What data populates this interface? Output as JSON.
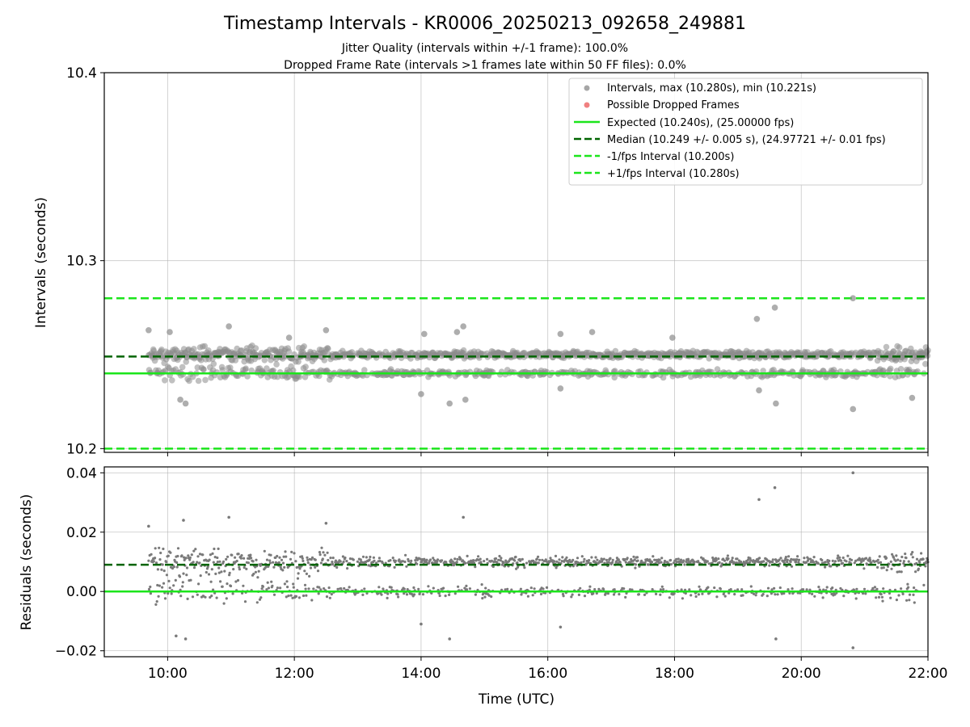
{
  "chart_data": [
    {
      "type": "scatter",
      "title": "Timestamp Intervals - KR0006_20250213_092658_249881",
      "subtitle_1": "Jitter Quality (intervals within +/-1 frame): 100.0%",
      "subtitle_2": "Dropped Frame Rate (intervals >1 frames late within 50 FF files): 0.0%",
      "ylabel": "Intervals (seconds)",
      "ylim": [
        10.198,
        10.4
      ],
      "yticks": [
        "10.2",
        "10.3",
        "10.4"
      ],
      "yticks_values": [
        10.2,
        10.3,
        10.4
      ],
      "grid": true,
      "legend_position": "top-right",
      "legend": [
        {
          "label": "Intervals, max (10.280s), min (10.221s)",
          "kind": "marker",
          "color": "#a6a6a6"
        },
        {
          "label": "Possible Dropped Frames",
          "kind": "marker",
          "color": "#f08080"
        },
        {
          "label": "Expected (10.240s), (25.00000 fps)",
          "kind": "solid",
          "color": "#1be51b"
        },
        {
          "label": "Median (10.249 +/- 0.005 s), (24.97721 +/- 0.01 fps)",
          "kind": "dashed",
          "color": "#006400"
        },
        {
          "label": "-1/fps Interval (10.200s)",
          "kind": "dashed",
          "color": "#1be51b"
        },
        {
          "label": "+1/fps Interval (10.280s)",
          "kind": "dashed",
          "color": "#1be51b"
        }
      ],
      "lines": {
        "expected": 10.24,
        "median": 10.249,
        "minus_fps": 10.2,
        "plus_fps": 10.28
      },
      "series": [
        {
          "name": "Intervals, max (10.280s), min (10.221s)",
          "x_range": [
            "09:42",
            "22:00"
          ],
          "level_upper": 10.25,
          "level_lower": 10.24,
          "outliers": [
            {
              "x": "09:42",
              "y": 10.263
            },
            {
              "x": "10:02",
              "y": 10.262
            },
            {
              "x": "10:12",
              "y": 10.226
            },
            {
              "x": "10:17",
              "y": 10.224
            },
            {
              "x": "10:58",
              "y": 10.265
            },
            {
              "x": "11:55",
              "y": 10.259
            },
            {
              "x": "12:30",
              "y": 10.263
            },
            {
              "x": "14:00",
              "y": 10.229
            },
            {
              "x": "14:03",
              "y": 10.261
            },
            {
              "x": "14:27",
              "y": 10.224
            },
            {
              "x": "14:34",
              "y": 10.262
            },
            {
              "x": "14:40",
              "y": 10.265
            },
            {
              "x": "14:42",
              "y": 10.226
            },
            {
              "x": "16:12",
              "y": 10.261
            },
            {
              "x": "16:12",
              "y": 10.232
            },
            {
              "x": "16:42",
              "y": 10.262
            },
            {
              "x": "17:58",
              "y": 10.259
            },
            {
              "x": "19:18",
              "y": 10.269
            },
            {
              "x": "19:20",
              "y": 10.231
            },
            {
              "x": "19:35",
              "y": 10.275
            },
            {
              "x": "19:36",
              "y": 10.224
            },
            {
              "x": "20:49",
              "y": 10.28
            },
            {
              "x": "20:49",
              "y": 10.221
            },
            {
              "x": "21:45",
              "y": 10.227
            }
          ]
        }
      ]
    },
    {
      "type": "scatter",
      "xlabel": "Time (UTC)",
      "ylabel": "Residuals (seconds)",
      "xlim": [
        "09:00",
        "22:00"
      ],
      "xticks": [
        "10:00",
        "12:00",
        "14:00",
        "16:00",
        "18:00",
        "20:00",
        "22:00"
      ],
      "ylim": [
        -0.022,
        0.042
      ],
      "yticks": [
        "−0.02",
        "0.00",
        "0.02",
        "0.04"
      ],
      "yticks_values": [
        -0.02,
        0.0,
        0.02,
        0.04
      ],
      "grid": true,
      "lines": {
        "zero": 0.0,
        "median": 0.009
      },
      "series": [
        {
          "name": "Residuals",
          "x_range": [
            "09:42",
            "22:00"
          ],
          "level_upper": 0.01,
          "level_lower": 0.0,
          "outliers": [
            {
              "x": "09:42",
              "y": 0.022
            },
            {
              "x": "10:08",
              "y": -0.015
            },
            {
              "x": "10:15",
              "y": 0.024
            },
            {
              "x": "10:17",
              "y": -0.016
            },
            {
              "x": "10:58",
              "y": 0.025
            },
            {
              "x": "12:30",
              "y": 0.023
            },
            {
              "x": "14:00",
              "y": -0.011
            },
            {
              "x": "14:27",
              "y": -0.016
            },
            {
              "x": "14:40",
              "y": 0.025
            },
            {
              "x": "16:12",
              "y": -0.012
            },
            {
              "x": "19:20",
              "y": 0.031
            },
            {
              "x": "19:35",
              "y": 0.035
            },
            {
              "x": "19:36",
              "y": -0.016
            },
            {
              "x": "20:49",
              "y": 0.04
            },
            {
              "x": "20:49",
              "y": -0.019
            }
          ]
        }
      ]
    }
  ]
}
